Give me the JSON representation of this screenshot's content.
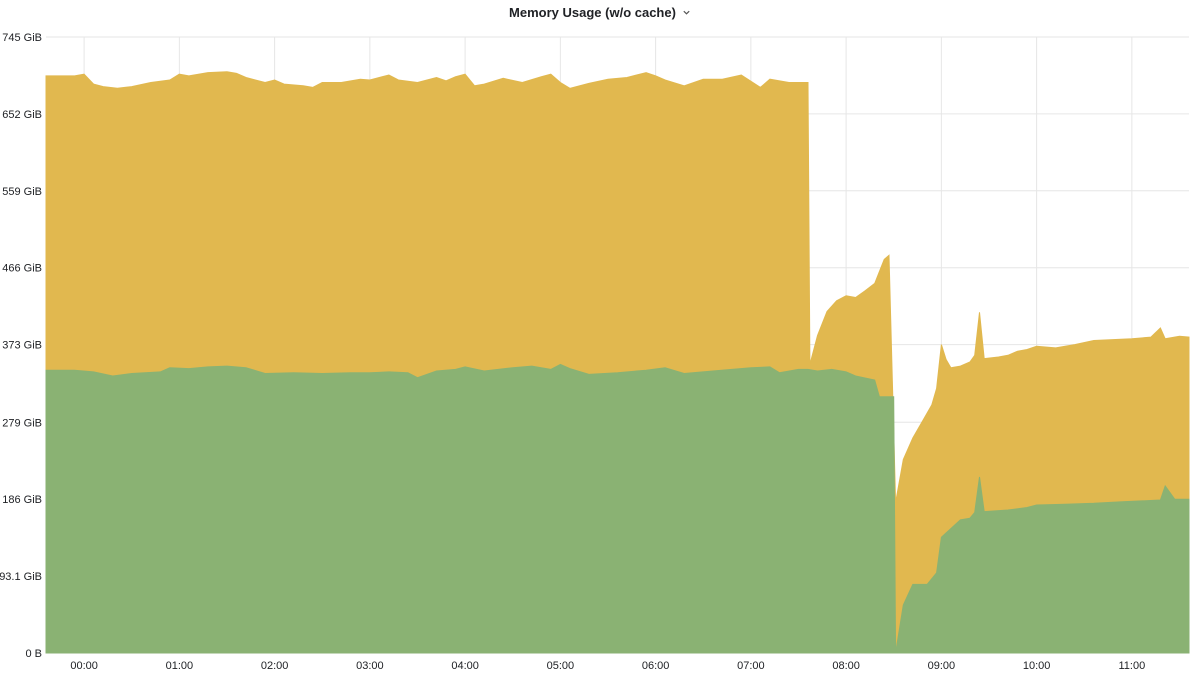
{
  "panel": {
    "title": "Memory Usage (w/o cache)",
    "menu_icon": "chevron-down-icon"
  },
  "chart_data": {
    "type": "area",
    "stacked": true,
    "x_unit": "hours",
    "xlim": [
      -0.4,
      11.6
    ],
    "ylim": [
      0,
      745
    ],
    "y_unit": "GiB",
    "y_ticks": [
      {
        "value": 0,
        "label": "0 B"
      },
      {
        "value": 93.1,
        "label": "93.1 GiB"
      },
      {
        "value": 186,
        "label": "186 GiB"
      },
      {
        "value": 279,
        "label": "279 GiB"
      },
      {
        "value": 373,
        "label": "373 GiB"
      },
      {
        "value": 466,
        "label": "466 GiB"
      },
      {
        "value": 559,
        "label": "559 GiB"
      },
      {
        "value": 652,
        "label": "652 GiB"
      },
      {
        "value": 745,
        "label": "745 GiB"
      }
    ],
    "x_ticks": [
      {
        "value": 0,
        "label": "00:00"
      },
      {
        "value": 1,
        "label": "01:00"
      },
      {
        "value": 2,
        "label": "02:00"
      },
      {
        "value": 3,
        "label": "03:00"
      },
      {
        "value": 4,
        "label": "04:00"
      },
      {
        "value": 5,
        "label": "05:00"
      },
      {
        "value": 6,
        "label": "06:00"
      },
      {
        "value": 7,
        "label": "07:00"
      },
      {
        "value": 8,
        "label": "08:00"
      },
      {
        "value": 9,
        "label": "09:00"
      },
      {
        "value": 10,
        "label": "10:00"
      },
      {
        "value": 11,
        "label": "11:00"
      }
    ],
    "grid": true,
    "legend": "none",
    "series": [
      {
        "color": "#8ab273",
        "points": [
          [
            -0.4,
            342
          ],
          [
            -0.1,
            342
          ],
          [
            0.1,
            340
          ],
          [
            0.3,
            335
          ],
          [
            0.5,
            338
          ],
          [
            0.8,
            340
          ],
          [
            0.9,
            345
          ],
          [
            1.1,
            344
          ],
          [
            1.3,
            346
          ],
          [
            1.5,
            347
          ],
          [
            1.7,
            345
          ],
          [
            1.9,
            338
          ],
          [
            2.2,
            339
          ],
          [
            2.5,
            338
          ],
          [
            2.8,
            339
          ],
          [
            3.0,
            339
          ],
          [
            3.2,
            340
          ],
          [
            3.4,
            339
          ],
          [
            3.5,
            333
          ],
          [
            3.7,
            341
          ],
          [
            3.9,
            343
          ],
          [
            4.0,
            346
          ],
          [
            4.2,
            341
          ],
          [
            4.5,
            345
          ],
          [
            4.7,
            347
          ],
          [
            4.9,
            343
          ],
          [
            5.0,
            349
          ],
          [
            5.1,
            344
          ],
          [
            5.3,
            337
          ],
          [
            5.6,
            339
          ],
          [
            5.9,
            342
          ],
          [
            6.1,
            345
          ],
          [
            6.3,
            338
          ],
          [
            6.6,
            341
          ],
          [
            6.8,
            343
          ],
          [
            7.0,
            345
          ],
          [
            7.2,
            346
          ],
          [
            7.3,
            339
          ],
          [
            7.5,
            343
          ],
          [
            7.6,
            343
          ],
          [
            7.7,
            341
          ],
          [
            7.85,
            343
          ],
          [
            8.0,
            340
          ],
          [
            8.1,
            335
          ],
          [
            8.3,
            330
          ],
          [
            8.35,
            310
          ],
          [
            8.5,
            310
          ],
          [
            8.52,
            0
          ],
          [
            8.6,
            58
          ],
          [
            8.7,
            83
          ],
          [
            8.85,
            83
          ],
          [
            8.95,
            97
          ],
          [
            9.0,
            140
          ],
          [
            9.2,
            161
          ],
          [
            9.3,
            163
          ],
          [
            9.35,
            170
          ],
          [
            9.4,
            213
          ],
          [
            9.45,
            171
          ],
          [
            9.7,
            173
          ],
          [
            9.9,
            176
          ],
          [
            10.0,
            179
          ],
          [
            10.3,
            180
          ],
          [
            10.6,
            181
          ],
          [
            10.9,
            183
          ],
          [
            11.1,
            184
          ],
          [
            11.3,
            185
          ],
          [
            11.35,
            202
          ],
          [
            11.45,
            186
          ],
          [
            11.6,
            186
          ]
        ]
      },
      {
        "color": "#e1b84f",
        "points": [
          [
            -0.4,
            698
          ],
          [
            -0.1,
            698
          ],
          [
            0.0,
            700
          ],
          [
            0.1,
            688
          ],
          [
            0.2,
            685
          ],
          [
            0.35,
            683
          ],
          [
            0.5,
            685
          ],
          [
            0.7,
            690
          ],
          [
            0.9,
            693
          ],
          [
            1.0,
            700
          ],
          [
            1.1,
            698
          ],
          [
            1.3,
            702
          ],
          [
            1.5,
            703
          ],
          [
            1.6,
            701
          ],
          [
            1.7,
            696
          ],
          [
            1.9,
            690
          ],
          [
            2.0,
            693
          ],
          [
            2.1,
            688
          ],
          [
            2.3,
            686
          ],
          [
            2.4,
            684
          ],
          [
            2.5,
            690
          ],
          [
            2.7,
            690
          ],
          [
            2.9,
            694
          ],
          [
            3.0,
            693
          ],
          [
            3.2,
            699
          ],
          [
            3.3,
            693
          ],
          [
            3.5,
            690
          ],
          [
            3.7,
            696
          ],
          [
            3.8,
            692
          ],
          [
            3.9,
            697
          ],
          [
            4.0,
            700
          ],
          [
            4.1,
            686
          ],
          [
            4.2,
            688
          ],
          [
            4.4,
            695
          ],
          [
            4.6,
            690
          ],
          [
            4.8,
            697
          ],
          [
            4.9,
            700
          ],
          [
            5.0,
            690
          ],
          [
            5.1,
            683
          ],
          [
            5.3,
            689
          ],
          [
            5.5,
            694
          ],
          [
            5.7,
            696
          ],
          [
            5.9,
            702
          ],
          [
            6.0,
            698
          ],
          [
            6.1,
            693
          ],
          [
            6.3,
            686
          ],
          [
            6.5,
            694
          ],
          [
            6.7,
            694
          ],
          [
            6.9,
            699
          ],
          [
            7.1,
            684
          ],
          [
            7.2,
            694
          ],
          [
            7.4,
            690
          ],
          [
            7.6,
            690
          ],
          [
            7.62,
            349
          ],
          [
            7.7,
            384
          ],
          [
            7.8,
            413
          ],
          [
            7.9,
            426
          ],
          [
            8.0,
            432
          ],
          [
            8.1,
            430
          ],
          [
            8.2,
            438
          ],
          [
            8.3,
            447
          ],
          [
            8.4,
            476
          ],
          [
            8.45,
            481
          ],
          [
            8.52,
            182
          ],
          [
            8.6,
            234
          ],
          [
            8.7,
            260
          ],
          [
            8.8,
            280
          ],
          [
            8.9,
            300
          ],
          [
            8.95,
            320
          ],
          [
            9.0,
            373
          ],
          [
            9.05,
            355
          ],
          [
            9.1,
            345
          ],
          [
            9.2,
            347
          ],
          [
            9.3,
            352
          ],
          [
            9.35,
            360
          ],
          [
            9.4,
            412
          ],
          [
            9.45,
            356
          ],
          [
            9.6,
            358
          ],
          [
            9.7,
            360
          ],
          [
            9.8,
            365
          ],
          [
            9.9,
            367
          ],
          [
            10.0,
            371
          ],
          [
            10.2,
            369
          ],
          [
            10.4,
            373
          ],
          [
            10.6,
            378
          ],
          [
            10.8,
            379
          ],
          [
            11.0,
            380
          ],
          [
            11.2,
            382
          ],
          [
            11.3,
            393
          ],
          [
            11.35,
            380
          ],
          [
            11.5,
            383
          ],
          [
            11.6,
            382
          ]
        ]
      }
    ]
  }
}
